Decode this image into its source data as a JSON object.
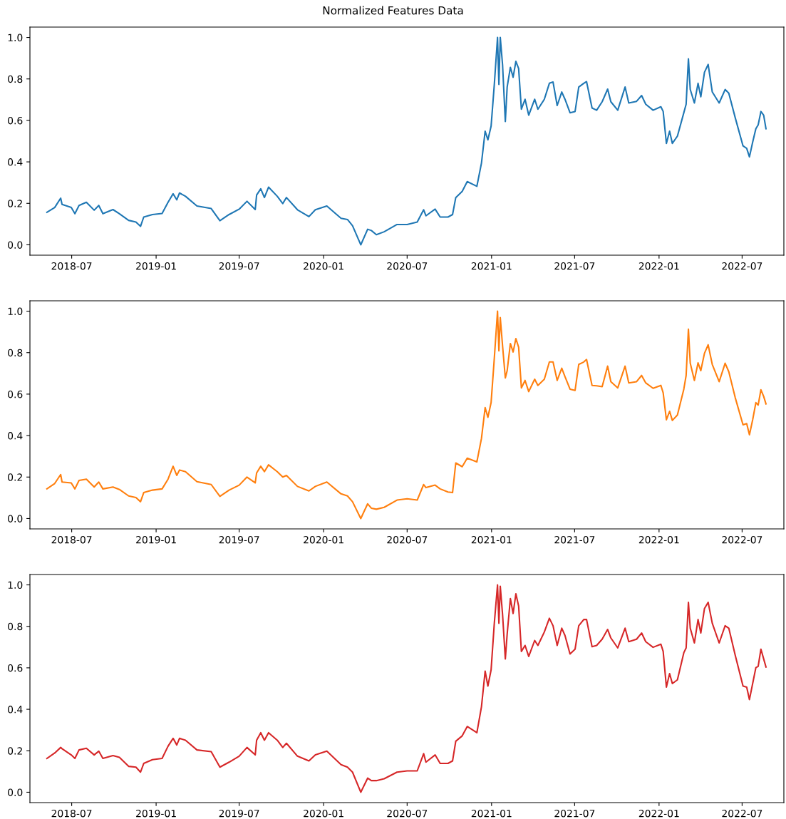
{
  "chart_data": [
    {
      "type": "line",
      "title": "Normalized Features Data",
      "x": [
        "2018-05-08",
        "2018-05-25",
        "2018-06-07",
        "2018-06-10",
        "2018-06-30",
        "2018-07-08",
        "2018-07-17",
        "2018-08-02",
        "2018-08-19",
        "2018-08-29",
        "2018-09-07",
        "2018-09-29",
        "2018-10-13",
        "2018-11-02",
        "2018-11-18",
        "2018-11-28",
        "2018-12-05",
        "2018-12-24",
        "2019-01-14",
        "2019-01-27",
        "2019-02-07",
        "2019-02-15",
        "2019-02-21",
        "2019-03-06",
        "2019-03-31",
        "2019-05-01",
        "2019-05-20",
        "2019-06-09",
        "2019-07-01",
        "2019-07-18",
        "2019-08-05",
        "2019-08-08",
        "2019-08-17",
        "2019-08-25",
        "2019-09-03",
        "2019-09-22",
        "2019-10-04",
        "2019-10-12",
        "2019-11-05",
        "2019-11-30",
        "2019-12-14",
        "2020-01-08",
        "2020-02-08",
        "2020-02-22",
        "2020-03-04",
        "2020-03-22",
        "2020-04-06",
        "2020-04-14",
        "2020-04-25",
        "2020-05-12",
        "2020-06-09",
        "2020-07-01",
        "2020-07-23",
        "2020-08-06",
        "2020-08-11",
        "2020-08-31",
        "2020-09-11",
        "2020-09-28",
        "2020-10-08",
        "2020-10-15",
        "2020-10-29",
        "2020-11-09",
        "2020-11-30",
        "2020-12-10",
        "2020-12-18",
        "2020-12-24",
        "2020-12-31",
        "2021-01-07",
        "2021-01-14",
        "2021-01-17",
        "2021-01-20",
        "2021-01-25",
        "2021-01-31",
        "2021-02-04",
        "2021-02-11",
        "2021-02-17",
        "2021-02-23",
        "2021-03-01",
        "2021-03-07",
        "2021-03-15",
        "2021-03-23",
        "2021-04-05",
        "2021-04-12",
        "2021-04-26",
        "2021-05-07",
        "2021-05-15",
        "2021-05-24",
        "2021-06-03",
        "2021-06-10",
        "2021-06-21",
        "2021-07-02",
        "2021-07-10",
        "2021-07-21",
        "2021-07-27",
        "2021-08-08",
        "2021-08-18",
        "2021-08-30",
        "2021-09-11",
        "2021-09-18",
        "2021-10-03",
        "2021-10-19",
        "2021-10-27",
        "2021-11-13",
        "2021-11-24",
        "2021-12-03",
        "2021-12-19",
        "2022-01-05",
        "2022-01-10",
        "2022-01-17",
        "2022-01-24",
        "2022-01-30",
        "2022-02-10",
        "2022-02-24",
        "2022-03-01",
        "2022-03-06",
        "2022-03-10",
        "2022-03-19",
        "2022-03-27",
        "2022-04-02",
        "2022-04-10",
        "2022-04-18",
        "2022-04-27",
        "2022-05-12",
        "2022-05-25",
        "2022-06-02",
        "2022-06-16",
        "2022-07-03",
        "2022-07-11",
        "2022-07-17",
        "2022-07-24",
        "2022-07-31",
        "2022-08-05",
        "2022-08-11",
        "2022-08-17",
        "2022-08-22"
      ],
      "series": [
        {
          "color": "#1f77b4",
          "values": [
            0.157,
            0.18,
            0.225,
            0.195,
            0.18,
            0.15,
            0.19,
            0.205,
            0.167,
            0.19,
            0.15,
            0.17,
            0.15,
            0.118,
            0.11,
            0.089,
            0.134,
            0.146,
            0.151,
            0.205,
            0.246,
            0.217,
            0.25,
            0.234,
            0.187,
            0.175,
            0.116,
            0.146,
            0.172,
            0.21,
            0.17,
            0.24,
            0.27,
            0.228,
            0.278,
            0.234,
            0.199,
            0.228,
            0.169,
            0.136,
            0.169,
            0.187,
            0.128,
            0.122,
            0.092,
            0.0,
            0.075,
            0.069,
            0.049,
            0.063,
            0.098,
            0.098,
            0.11,
            0.169,
            0.14,
            0.172,
            0.134,
            0.134,
            0.146,
            0.228,
            0.258,
            0.305,
            0.282,
            0.394,
            0.548,
            0.506,
            0.572,
            0.773,
            1.0,
            0.773,
            1.0,
            0.867,
            0.595,
            0.761,
            0.856,
            0.808,
            0.885,
            0.85,
            0.654,
            0.702,
            0.625,
            0.702,
            0.654,
            0.702,
            0.779,
            0.785,
            0.672,
            0.737,
            0.702,
            0.637,
            0.643,
            0.761,
            0.779,
            0.787,
            0.66,
            0.649,
            0.69,
            0.751,
            0.69,
            0.649,
            0.761,
            0.684,
            0.692,
            0.72,
            0.678,
            0.649,
            0.666,
            0.643,
            0.489,
            0.548,
            0.489,
            0.524,
            0.637,
            0.678,
            0.897,
            0.749,
            0.684,
            0.779,
            0.714,
            0.832,
            0.87,
            0.737,
            0.684,
            0.749,
            0.731,
            0.613,
            0.477,
            0.465,
            0.424,
            0.495,
            0.56,
            0.578,
            0.643,
            0.625,
            0.56
          ]
        }
      ],
      "xlim": [
        "2018-04-01",
        "2022-09-30"
      ],
      "ylim": [
        -0.05,
        1.05
      ],
      "xticks": [
        "2018-07",
        "2019-01",
        "2019-07",
        "2020-01",
        "2020-07",
        "2021-01",
        "2021-07",
        "2022-01",
        "2022-07"
      ],
      "yticks": [
        {
          "value": 0.0,
          "label": "0.0"
        },
        {
          "value": 0.2,
          "label": "0.2"
        },
        {
          "value": 0.4,
          "label": "0.4"
        },
        {
          "value": 0.6,
          "label": "0.6"
        },
        {
          "value": 0.8,
          "label": "0.8"
        },
        {
          "value": 1.0,
          "label": "1.0"
        }
      ],
      "grid": false,
      "line_style": "solid"
    },
    {
      "type": "line",
      "x": [
        "2018-05-08",
        "2018-05-25",
        "2018-06-07",
        "2018-06-10",
        "2018-06-30",
        "2018-07-08",
        "2018-07-17",
        "2018-08-02",
        "2018-08-19",
        "2018-08-29",
        "2018-09-07",
        "2018-09-29",
        "2018-10-13",
        "2018-11-02",
        "2018-11-18",
        "2018-11-28",
        "2018-12-05",
        "2018-12-24",
        "2019-01-14",
        "2019-01-27",
        "2019-02-07",
        "2019-02-15",
        "2019-02-21",
        "2019-03-06",
        "2019-03-31",
        "2019-05-01",
        "2019-05-20",
        "2019-06-09",
        "2019-07-01",
        "2019-07-18",
        "2019-08-05",
        "2019-08-08",
        "2019-08-17",
        "2019-08-25",
        "2019-09-03",
        "2019-09-22",
        "2019-10-04",
        "2019-10-12",
        "2019-11-05",
        "2019-11-30",
        "2019-12-14",
        "2020-01-08",
        "2020-02-08",
        "2020-02-22",
        "2020-03-04",
        "2020-03-22",
        "2020-04-06",
        "2020-04-14",
        "2020-04-25",
        "2020-05-12",
        "2020-06-09",
        "2020-07-01",
        "2020-07-23",
        "2020-08-06",
        "2020-08-11",
        "2020-08-31",
        "2020-09-11",
        "2020-09-28",
        "2020-10-08",
        "2020-10-15",
        "2020-10-29",
        "2020-11-09",
        "2020-11-30",
        "2020-12-10",
        "2020-12-18",
        "2020-12-24",
        "2020-12-31",
        "2021-01-07",
        "2021-01-14",
        "2021-01-17",
        "2021-01-20",
        "2021-01-25",
        "2021-01-31",
        "2021-02-04",
        "2021-02-11",
        "2021-02-17",
        "2021-02-23",
        "2021-03-01",
        "2021-03-07",
        "2021-03-15",
        "2021-03-23",
        "2021-04-05",
        "2021-04-12",
        "2021-04-26",
        "2021-05-07",
        "2021-05-15",
        "2021-05-24",
        "2021-06-03",
        "2021-06-10",
        "2021-06-21",
        "2021-07-02",
        "2021-07-10",
        "2021-07-21",
        "2021-07-27",
        "2021-08-08",
        "2021-08-18",
        "2021-08-30",
        "2021-09-11",
        "2021-09-18",
        "2021-10-03",
        "2021-10-19",
        "2021-10-27",
        "2021-11-13",
        "2021-11-24",
        "2021-12-03",
        "2021-12-19",
        "2022-01-05",
        "2022-01-10",
        "2022-01-17",
        "2022-01-24",
        "2022-01-30",
        "2022-02-10",
        "2022-02-24",
        "2022-03-01",
        "2022-03-06",
        "2022-03-10",
        "2022-03-19",
        "2022-03-27",
        "2022-04-02",
        "2022-04-10",
        "2022-04-18",
        "2022-04-27",
        "2022-05-12",
        "2022-05-25",
        "2022-06-02",
        "2022-06-16",
        "2022-07-03",
        "2022-07-11",
        "2022-07-17",
        "2022-07-24",
        "2022-07-31",
        "2022-08-05",
        "2022-08-11",
        "2022-08-17",
        "2022-08-22"
      ],
      "series": [
        {
          "color": "#ff7f0e",
          "values": [
            0.143,
            0.169,
            0.212,
            0.176,
            0.172,
            0.143,
            0.184,
            0.19,
            0.152,
            0.176,
            0.143,
            0.152,
            0.14,
            0.109,
            0.101,
            0.081,
            0.125,
            0.137,
            0.143,
            0.19,
            0.252,
            0.208,
            0.234,
            0.226,
            0.178,
            0.164,
            0.107,
            0.137,
            0.161,
            0.2,
            0.172,
            0.22,
            0.252,
            0.226,
            0.259,
            0.226,
            0.2,
            0.208,
            0.155,
            0.133,
            0.155,
            0.176,
            0.119,
            0.109,
            0.081,
            0.0,
            0.071,
            0.05,
            0.045,
            0.054,
            0.089,
            0.095,
            0.089,
            0.164,
            0.149,
            0.161,
            0.143,
            0.128,
            0.125,
            0.268,
            0.25,
            0.291,
            0.273,
            0.386,
            0.535,
            0.488,
            0.559,
            0.773,
            1.0,
            0.809,
            0.969,
            0.832,
            0.678,
            0.713,
            0.844,
            0.803,
            0.868,
            0.826,
            0.63,
            0.666,
            0.612,
            0.672,
            0.642,
            0.672,
            0.755,
            0.755,
            0.666,
            0.725,
            0.684,
            0.624,
            0.618,
            0.743,
            0.755,
            0.767,
            0.642,
            0.64,
            0.636,
            0.735,
            0.66,
            0.63,
            0.735,
            0.654,
            0.66,
            0.69,
            0.654,
            0.628,
            0.642,
            0.606,
            0.476,
            0.517,
            0.473,
            0.499,
            0.624,
            0.69,
            0.913,
            0.749,
            0.666,
            0.751,
            0.713,
            0.797,
            0.838,
            0.743,
            0.66,
            0.749,
            0.708,
            0.583,
            0.452,
            0.458,
            0.404,
            0.476,
            0.559,
            0.547,
            0.621,
            0.589,
            0.553
          ]
        }
      ],
      "xlim": [
        "2018-04-01",
        "2022-09-30"
      ],
      "ylim": [
        -0.05,
        1.05
      ],
      "xticks": [
        "2018-07",
        "2019-01",
        "2019-07",
        "2020-01",
        "2020-07",
        "2021-01",
        "2021-07",
        "2022-01",
        "2022-07"
      ],
      "yticks": [
        {
          "value": 0.0,
          "label": "0.0"
        },
        {
          "value": 0.2,
          "label": "0.2"
        },
        {
          "value": 0.4,
          "label": "0.4"
        },
        {
          "value": 0.6,
          "label": "0.6"
        },
        {
          "value": 0.8,
          "label": "0.8"
        },
        {
          "value": 1.0,
          "label": "1.0"
        }
      ],
      "grid": false,
      "line_style": "solid"
    },
    {
      "type": "line",
      "x": [
        "2018-05-08",
        "2018-05-25",
        "2018-06-07",
        "2018-06-10",
        "2018-06-30",
        "2018-07-08",
        "2018-07-17",
        "2018-08-02",
        "2018-08-19",
        "2018-08-29",
        "2018-09-07",
        "2018-09-29",
        "2018-10-13",
        "2018-11-02",
        "2018-11-18",
        "2018-11-28",
        "2018-12-05",
        "2018-12-24",
        "2019-01-14",
        "2019-01-27",
        "2019-02-07",
        "2019-02-15",
        "2019-02-21",
        "2019-03-06",
        "2019-03-31",
        "2019-05-01",
        "2019-05-20",
        "2019-06-09",
        "2019-07-01",
        "2019-07-18",
        "2019-08-05",
        "2019-08-08",
        "2019-08-17",
        "2019-08-25",
        "2019-09-03",
        "2019-09-22",
        "2019-10-04",
        "2019-10-12",
        "2019-11-05",
        "2019-11-30",
        "2019-12-14",
        "2020-01-08",
        "2020-02-08",
        "2020-02-22",
        "2020-03-04",
        "2020-03-22",
        "2020-04-06",
        "2020-04-14",
        "2020-04-25",
        "2020-05-12",
        "2020-06-09",
        "2020-07-01",
        "2020-07-23",
        "2020-08-06",
        "2020-08-11",
        "2020-08-31",
        "2020-09-11",
        "2020-09-28",
        "2020-10-08",
        "2020-10-15",
        "2020-10-29",
        "2020-11-09",
        "2020-11-30",
        "2020-12-10",
        "2020-12-18",
        "2020-12-24",
        "2020-12-31",
        "2021-01-07",
        "2021-01-14",
        "2021-01-17",
        "2021-01-20",
        "2021-01-25",
        "2021-01-31",
        "2021-02-04",
        "2021-02-11",
        "2021-02-17",
        "2021-02-23",
        "2021-03-01",
        "2021-03-07",
        "2021-03-15",
        "2021-03-23",
        "2021-04-05",
        "2021-04-12",
        "2021-04-26",
        "2021-05-07",
        "2021-05-15",
        "2021-05-24",
        "2021-06-03",
        "2021-06-10",
        "2021-06-21",
        "2021-07-02",
        "2021-07-10",
        "2021-07-21",
        "2021-07-27",
        "2021-08-08",
        "2021-08-18",
        "2021-08-30",
        "2021-09-11",
        "2021-09-18",
        "2021-10-03",
        "2021-10-19",
        "2021-10-27",
        "2021-11-13",
        "2021-11-24",
        "2021-12-03",
        "2021-12-19",
        "2022-01-05",
        "2022-01-10",
        "2022-01-17",
        "2022-01-24",
        "2022-01-30",
        "2022-02-10",
        "2022-02-24",
        "2022-03-01",
        "2022-03-06",
        "2022-03-10",
        "2022-03-19",
        "2022-03-27",
        "2022-04-02",
        "2022-04-10",
        "2022-04-18",
        "2022-04-27",
        "2022-05-12",
        "2022-05-25",
        "2022-06-02",
        "2022-06-16",
        "2022-07-03",
        "2022-07-11",
        "2022-07-17",
        "2022-07-24",
        "2022-07-31",
        "2022-08-05",
        "2022-08-11",
        "2022-08-17",
        "2022-08-22"
      ],
      "series": [
        {
          "color": "#d62728",
          "values": [
            0.163,
            0.189,
            0.216,
            0.21,
            0.18,
            0.163,
            0.204,
            0.212,
            0.18,
            0.198,
            0.163,
            0.177,
            0.168,
            0.125,
            0.121,
            0.097,
            0.139,
            0.157,
            0.163,
            0.222,
            0.26,
            0.228,
            0.26,
            0.251,
            0.204,
            0.196,
            0.121,
            0.145,
            0.174,
            0.216,
            0.18,
            0.251,
            0.287,
            0.251,
            0.287,
            0.251,
            0.216,
            0.236,
            0.174,
            0.151,
            0.18,
            0.198,
            0.133,
            0.121,
            0.097,
            0.0,
            0.068,
            0.056,
            0.056,
            0.065,
            0.097,
            0.103,
            0.103,
            0.186,
            0.145,
            0.18,
            0.139,
            0.139,
            0.151,
            0.246,
            0.272,
            0.317,
            0.287,
            0.412,
            0.584,
            0.512,
            0.59,
            0.815,
            1.0,
            0.815,
            0.993,
            0.856,
            0.643,
            0.762,
            0.934,
            0.862,
            0.957,
            0.898,
            0.679,
            0.708,
            0.655,
            0.732,
            0.708,
            0.773,
            0.839,
            0.803,
            0.708,
            0.791,
            0.756,
            0.667,
            0.69,
            0.803,
            0.833,
            0.833,
            0.702,
            0.708,
            0.738,
            0.785,
            0.744,
            0.696,
            0.791,
            0.726,
            0.738,
            0.768,
            0.726,
            0.699,
            0.714,
            0.679,
            0.507,
            0.572,
            0.524,
            0.542,
            0.673,
            0.696,
            0.916,
            0.791,
            0.72,
            0.833,
            0.768,
            0.886,
            0.916,
            0.815,
            0.72,
            0.803,
            0.791,
            0.661,
            0.512,
            0.507,
            0.447,
            0.524,
            0.601,
            0.607,
            0.69,
            0.643,
            0.604
          ]
        }
      ],
      "xlim": [
        "2018-04-01",
        "2022-09-30"
      ],
      "ylim": [
        -0.05,
        1.05
      ],
      "xticks": [
        "2018-07",
        "2019-01",
        "2019-07",
        "2020-01",
        "2020-07",
        "2021-01",
        "2021-07",
        "2022-01",
        "2022-07"
      ],
      "yticks": [
        {
          "value": 0.0,
          "label": "0.0"
        },
        {
          "value": 0.2,
          "label": "0.2"
        },
        {
          "value": 0.4,
          "label": "0.4"
        },
        {
          "value": 0.6,
          "label": "0.6"
        },
        {
          "value": 0.8,
          "label": "0.8"
        },
        {
          "value": 1.0,
          "label": "1.0"
        }
      ],
      "grid": false,
      "line_style": "solid"
    }
  ]
}
